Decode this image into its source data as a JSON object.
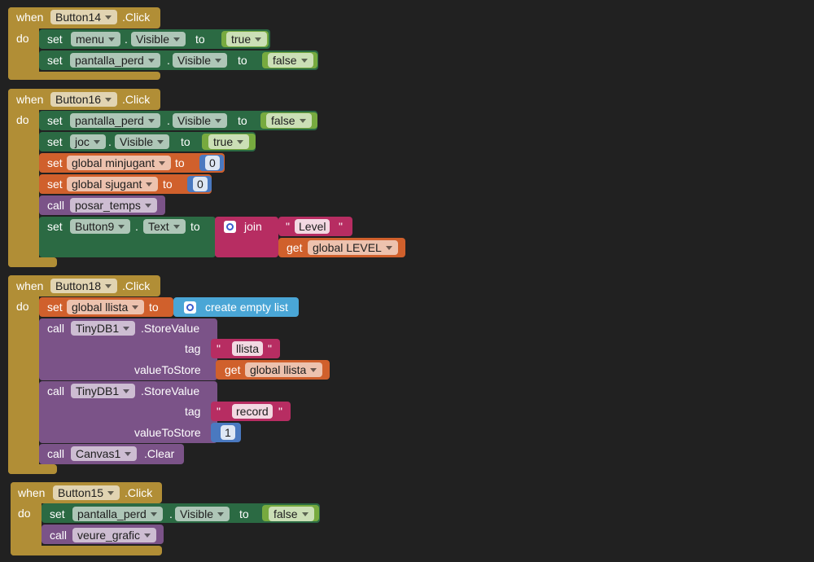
{
  "events": [
    {
      "header": [
        "when",
        "Button14",
        ".Click"
      ],
      "do": "do",
      "rows": [
        [
          "set",
          "menu",
          ".",
          "Visible",
          "to",
          "true"
        ],
        [
          "set",
          "pantalla_perd",
          ".",
          "Visible",
          "to",
          "false"
        ]
      ]
    },
    {
      "header": [
        "when",
        "Button16",
        ".Click"
      ],
      "do": "do",
      "rows": [
        [
          "set",
          "pantalla_perd",
          ".",
          "Visible",
          "to",
          "false"
        ],
        [
          "set",
          "joc",
          ".",
          "Visible",
          "to",
          "true"
        ],
        [
          "set",
          "global minjugant",
          "to",
          "0"
        ],
        [
          "set",
          "global sjugant",
          "to",
          "0"
        ],
        [
          "call",
          "posar_temps"
        ],
        [
          "set",
          "Button9",
          ".",
          "Text",
          "to",
          "join",
          "\"",
          "Level",
          "\""
        ],
        [
          "get",
          "global LEVEL"
        ]
      ]
    },
    {
      "header": [
        "when",
        "Button18",
        ".Click"
      ],
      "do": "do",
      "rows": [
        [
          "set",
          "global llista",
          "to",
          "create empty list"
        ],
        [
          "call",
          "TinyDB1",
          ".StoreValue"
        ],
        [
          "tag",
          "\"",
          "llista",
          "\""
        ],
        [
          "valueToStore",
          "get",
          "global llista"
        ],
        [
          "call",
          "TinyDB1",
          ".StoreValue"
        ],
        [
          "tag",
          "\"",
          "record",
          "\""
        ],
        [
          "valueToStore",
          "1"
        ],
        [
          "call",
          "Canvas1",
          ".Clear"
        ]
      ]
    },
    {
      "header": [
        "when",
        "Button15",
        ".Click"
      ],
      "do": "do",
      "rows": [
        [
          "set",
          "pantalla_perd",
          ".",
          "Visible",
          "to",
          "false"
        ],
        [
          "call",
          "veure_grafic"
        ]
      ]
    }
  ]
}
